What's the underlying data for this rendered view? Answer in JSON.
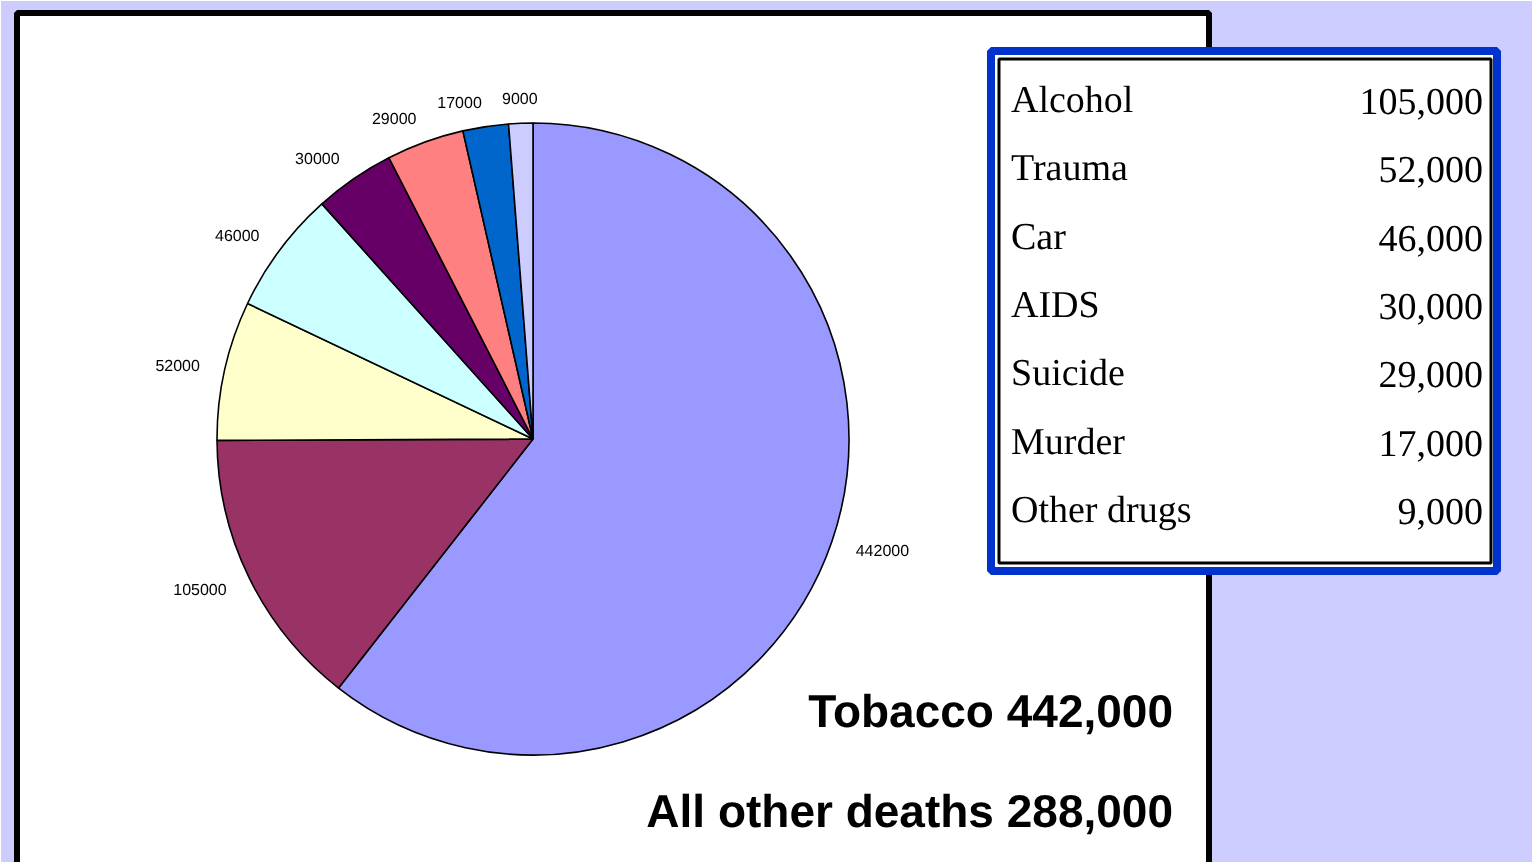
{
  "chart_data": {
    "type": "pie",
    "categories": [
      null,
      null,
      null,
      null,
      null,
      null,
      null,
      null
    ],
    "values": [
      442000,
      105000,
      52000,
      46000,
      30000,
      29000,
      17000,
      9000
    ],
    "colors": [
      "#9999ff",
      "#993366",
      "#ffffcc",
      "#ccffff",
      "#660066",
      "#ff8080",
      "#0066cc",
      "#ccccff"
    ],
    "data_labels": true,
    "annotations": [
      "Alcohol",
      "105,000",
      "Trauma",
      "52,000",
      "Car",
      "46,000",
      "AIDS",
      "30,000",
      "Suicide",
      "29,000",
      "Murder",
      "17,000",
      "Other drugs",
      "9,000",
      "Tobacco 442,000",
      "All other deaths 288,000"
    ]
  }
}
